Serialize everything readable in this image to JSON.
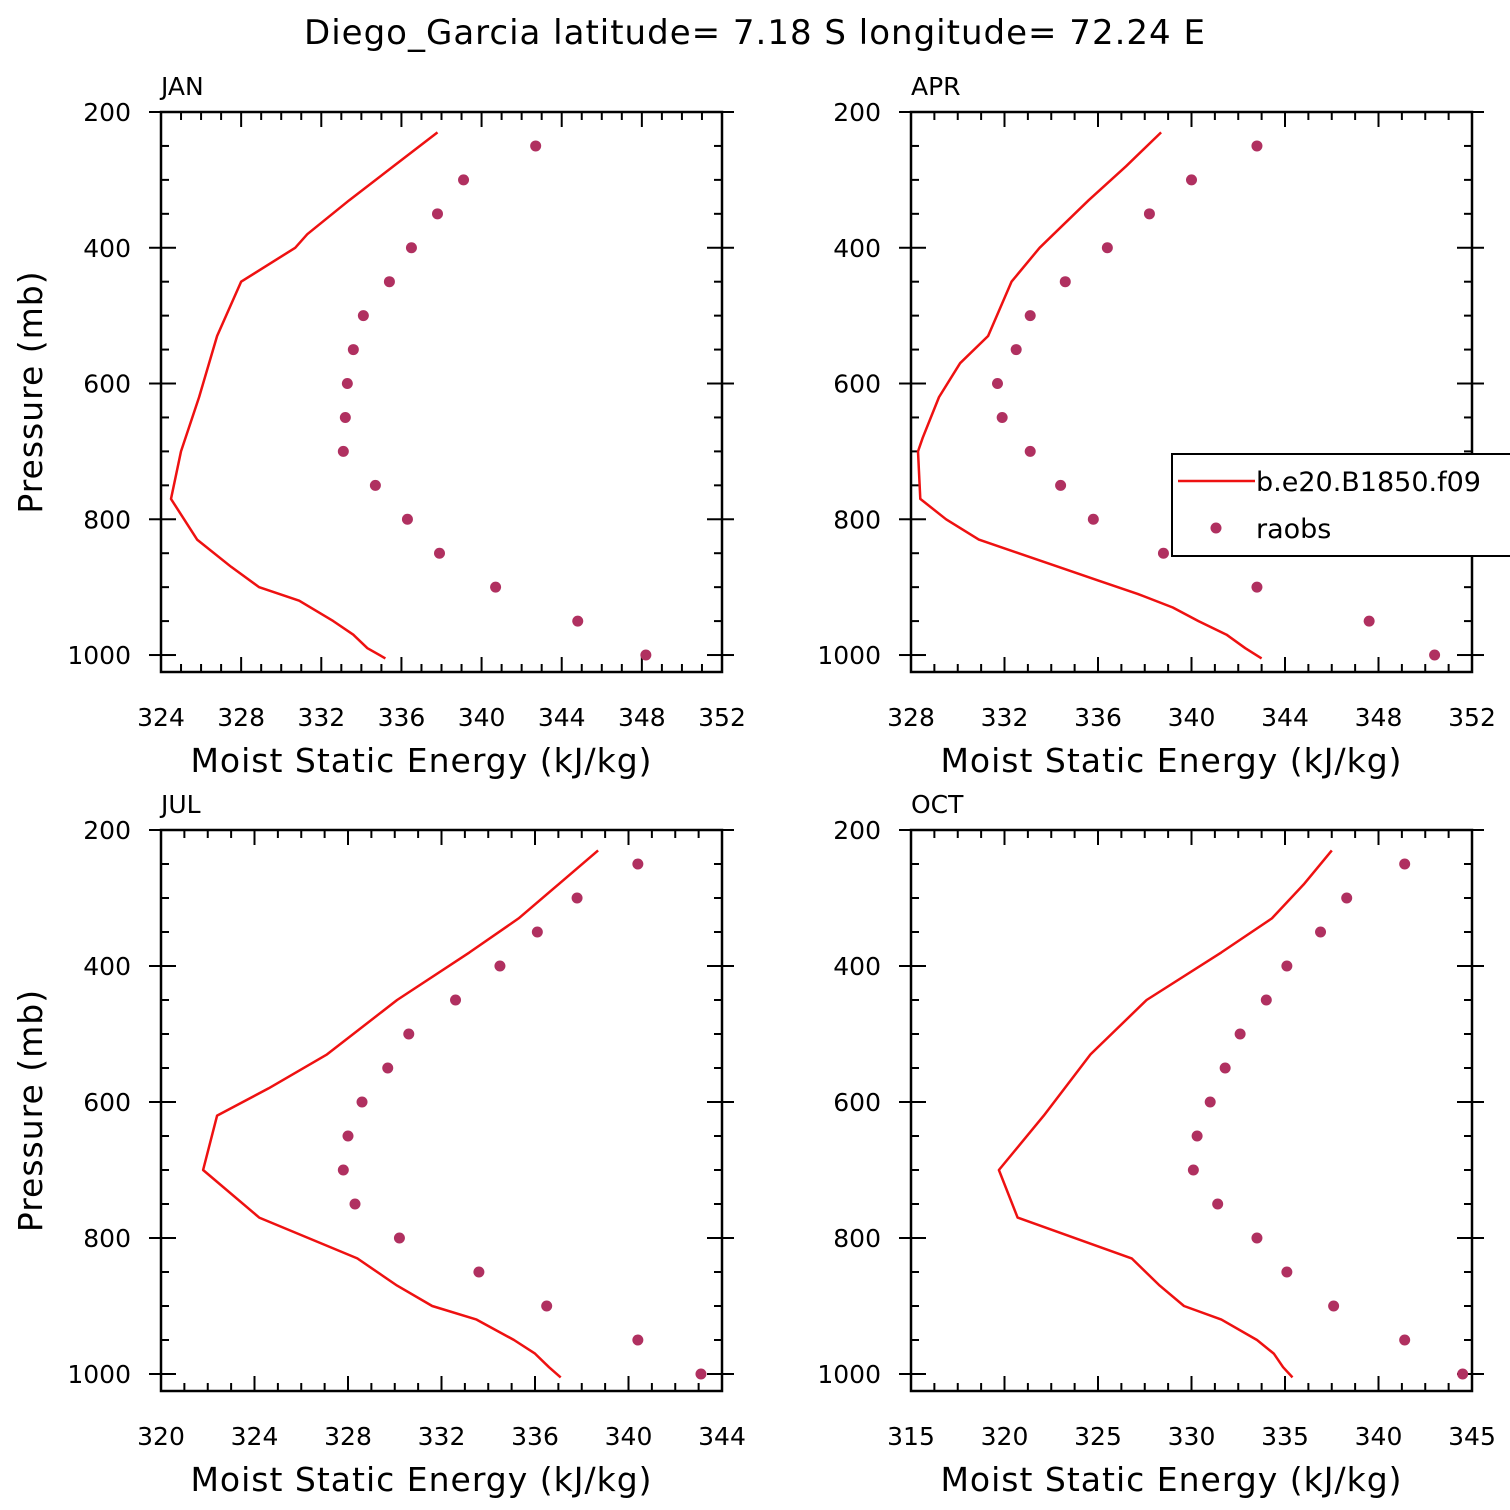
{
  "figure": {
    "title": "Diego_Garcia  latitude= 7.18 S longitude= 72.24 E",
    "colors": {
      "model": "#ee1111",
      "obs": "#b03060",
      "axis": "#000000"
    }
  },
  "chart_data": [
    {
      "type": "line",
      "panel_label": "JAN",
      "xlabel": "Moist Static Energy (kJ/kg)",
      "ylabel": "Pressure (mb)",
      "xlim": [
        324,
        352
      ],
      "xticks": [
        324,
        328,
        332,
        336,
        340,
        344,
        348,
        352
      ],
      "ylim": [
        1025,
        200
      ],
      "yticks": [
        200,
        400,
        600,
        800,
        1000
      ],
      "series": [
        {
          "name": "b.e20.B1850.f09",
          "kind": "line",
          "points": [
            [
              337.8,
              230
            ],
            [
              335.6,
              280
            ],
            [
              333.4,
              330
            ],
            [
              331.3,
              380
            ],
            [
              330.7,
              400
            ],
            [
              328.0,
              450
            ],
            [
              326.8,
              530
            ],
            [
              325.9,
              620
            ],
            [
              325.0,
              700
            ],
            [
              324.5,
              770
            ],
            [
              325.8,
              830
            ],
            [
              327.5,
              870
            ],
            [
              328.9,
              900
            ],
            [
              330.9,
              920
            ],
            [
              332.6,
              950
            ],
            [
              333.6,
              970
            ],
            [
              334.3,
              990
            ],
            [
              335.2,
              1005
            ]
          ]
        },
        {
          "name": "raobs",
          "kind": "scatter",
          "points": [
            [
              342.7,
              250
            ],
            [
              339.1,
              300
            ],
            [
              337.8,
              350
            ],
            [
              336.5,
              400
            ],
            [
              335.4,
              450
            ],
            [
              334.1,
              500
            ],
            [
              333.6,
              550
            ],
            [
              333.3,
              600
            ],
            [
              333.2,
              650
            ],
            [
              333.1,
              700
            ],
            [
              334.7,
              750
            ],
            [
              336.3,
              800
            ],
            [
              337.9,
              850
            ],
            [
              340.7,
              900
            ],
            [
              344.8,
              950
            ],
            [
              348.2,
              1000
            ]
          ]
        }
      ]
    },
    {
      "type": "line",
      "panel_label": "APR",
      "xlabel": "Moist Static Energy (kJ/kg)",
      "ylabel": "",
      "xlim": [
        328,
        352
      ],
      "xticks": [
        328,
        332,
        336,
        340,
        344,
        348,
        352
      ],
      "ylim": [
        1025,
        200
      ],
      "yticks": [
        200,
        400,
        600,
        800,
        1000
      ],
      "legend": {
        "placement": "right",
        "entries": [
          "b.e20.B1850.f09",
          "raobs"
        ]
      },
      "series": [
        {
          "name": "b.e20.B1850.f09",
          "kind": "line",
          "points": [
            [
              338.7,
              230
            ],
            [
              337.2,
              280
            ],
            [
              335.6,
              330
            ],
            [
              334.1,
              380
            ],
            [
              333.5,
              400
            ],
            [
              332.3,
              450
            ],
            [
              331.3,
              530
            ],
            [
              330.1,
              570
            ],
            [
              329.2,
              620
            ],
            [
              328.5,
              680
            ],
            [
              328.3,
              700
            ],
            [
              328.4,
              770
            ],
            [
              329.5,
              800
            ],
            [
              330.9,
              830
            ],
            [
              332.6,
              850
            ],
            [
              334.3,
              870
            ],
            [
              336.0,
              890
            ],
            [
              337.7,
              910
            ],
            [
              339.2,
              930
            ],
            [
              340.3,
              950
            ],
            [
              341.5,
              970
            ],
            [
              342.3,
              990
            ],
            [
              343.0,
              1005
            ]
          ]
        },
        {
          "name": "raobs",
          "kind": "scatter",
          "points": [
            [
              342.8,
              250
            ],
            [
              340.0,
              300
            ],
            [
              338.2,
              350
            ],
            [
              336.4,
              400
            ],
            [
              334.6,
              450
            ],
            [
              333.1,
              500
            ],
            [
              332.5,
              550
            ],
            [
              331.7,
              600
            ],
            [
              331.9,
              650
            ],
            [
              333.1,
              700
            ],
            [
              334.4,
              750
            ],
            [
              335.8,
              800
            ],
            [
              338.8,
              850
            ],
            [
              342.8,
              900
            ],
            [
              347.6,
              950
            ],
            [
              350.4,
              1000
            ]
          ]
        }
      ]
    },
    {
      "type": "line",
      "panel_label": "JUL",
      "xlabel": "Moist Static Energy (kJ/kg)",
      "ylabel": "Pressure (mb)",
      "xlim": [
        320,
        344
      ],
      "xticks": [
        320,
        324,
        328,
        332,
        336,
        340,
        344
      ],
      "ylim": [
        1025,
        200
      ],
      "yticks": [
        200,
        400,
        600,
        800,
        1000
      ],
      "series": [
        {
          "name": "b.e20.B1850.f09",
          "kind": "line",
          "points": [
            [
              338.7,
              230
            ],
            [
              337.0,
              280
            ],
            [
              335.3,
              330
            ],
            [
              333.2,
              380
            ],
            [
              330.1,
              450
            ],
            [
              327.1,
              530
            ],
            [
              324.6,
              580
            ],
            [
              322.4,
              620
            ],
            [
              321.8,
              700
            ],
            [
              324.2,
              770
            ],
            [
              328.4,
              830
            ],
            [
              330.1,
              870
            ],
            [
              331.6,
              900
            ],
            [
              333.5,
              920
            ],
            [
              335.1,
              950
            ],
            [
              336.0,
              970
            ],
            [
              336.6,
              990
            ],
            [
              337.1,
              1005
            ]
          ]
        },
        {
          "name": "raobs",
          "kind": "scatter",
          "points": [
            [
              340.4,
              250
            ],
            [
              337.8,
              300
            ],
            [
              336.1,
              350
            ],
            [
              334.5,
              400
            ],
            [
              332.6,
              450
            ],
            [
              330.6,
              500
            ],
            [
              329.7,
              550
            ],
            [
              328.6,
              600
            ],
            [
              328.0,
              650
            ],
            [
              327.8,
              700
            ],
            [
              328.3,
              750
            ],
            [
              330.2,
              800
            ],
            [
              333.6,
              850
            ],
            [
              336.5,
              900
            ],
            [
              340.4,
              950
            ],
            [
              343.1,
              1000
            ]
          ]
        }
      ]
    },
    {
      "type": "line",
      "panel_label": "OCT",
      "xlabel": "Moist Static Energy (kJ/kg)",
      "ylabel": "",
      "xlim": [
        315,
        345
      ],
      "xticks": [
        315,
        320,
        325,
        330,
        335,
        340,
        345
      ],
      "ylim": [
        1025,
        200
      ],
      "yticks": [
        200,
        400,
        600,
        800,
        1000
      ],
      "series": [
        {
          "name": "b.e20.B1850.f09",
          "kind": "line",
          "points": [
            [
              337.5,
              230
            ],
            [
              336.0,
              280
            ],
            [
              334.3,
              330
            ],
            [
              331.6,
              380
            ],
            [
              327.6,
              450
            ],
            [
              324.6,
              530
            ],
            [
              322.1,
              620
            ],
            [
              319.7,
              700
            ],
            [
              320.7,
              770
            ],
            [
              326.8,
              830
            ],
            [
              328.3,
              870
            ],
            [
              329.6,
              900
            ],
            [
              331.6,
              920
            ],
            [
              333.5,
              950
            ],
            [
              334.4,
              970
            ],
            [
              334.9,
              990
            ],
            [
              335.4,
              1005
            ]
          ]
        },
        {
          "name": "raobs",
          "kind": "scatter",
          "points": [
            [
              341.4,
              250
            ],
            [
              338.3,
              300
            ],
            [
              336.9,
              350
            ],
            [
              335.1,
              400
            ],
            [
              334.0,
              450
            ],
            [
              332.6,
              500
            ],
            [
              331.8,
              550
            ],
            [
              331.0,
              600
            ],
            [
              330.3,
              650
            ],
            [
              330.1,
              700
            ],
            [
              331.4,
              750
            ],
            [
              333.5,
              800
            ],
            [
              335.1,
              850
            ],
            [
              337.6,
              900
            ],
            [
              341.4,
              950
            ],
            [
              344.5,
              1000
            ]
          ]
        }
      ]
    }
  ]
}
